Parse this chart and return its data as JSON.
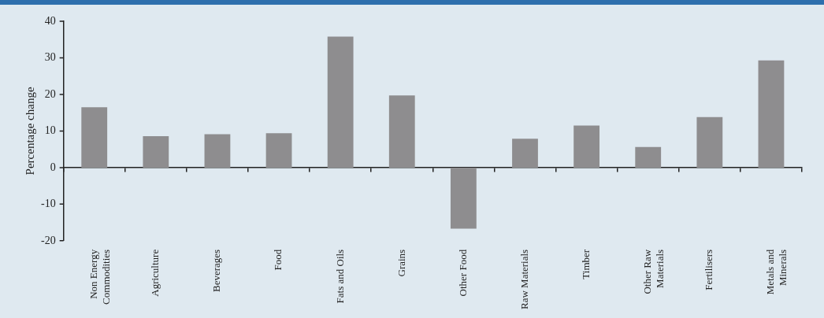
{
  "chart_data": {
    "type": "bar",
    "ylabel": "Percentage change",
    "categories": [
      "Non Energy Commodities",
      "Agriculture",
      "Beverages",
      "Food",
      "Fats and Oils",
      "Grains",
      "Other Food",
      "Raw Materials",
      "Timber",
      "Other Raw Materials",
      "Fertilisers",
      "Metals and Minerals"
    ],
    "values": [
      16.5,
      8.6,
      9.1,
      9.4,
      35.8,
      19.7,
      -16.7,
      7.9,
      11.5,
      5.6,
      13.8,
      29.3
    ],
    "color": "#8e8d8f",
    "ylim": [
      -20,
      40
    ],
    "yticks": [
      -20,
      -10,
      0,
      10,
      20,
      30,
      40
    ]
  }
}
